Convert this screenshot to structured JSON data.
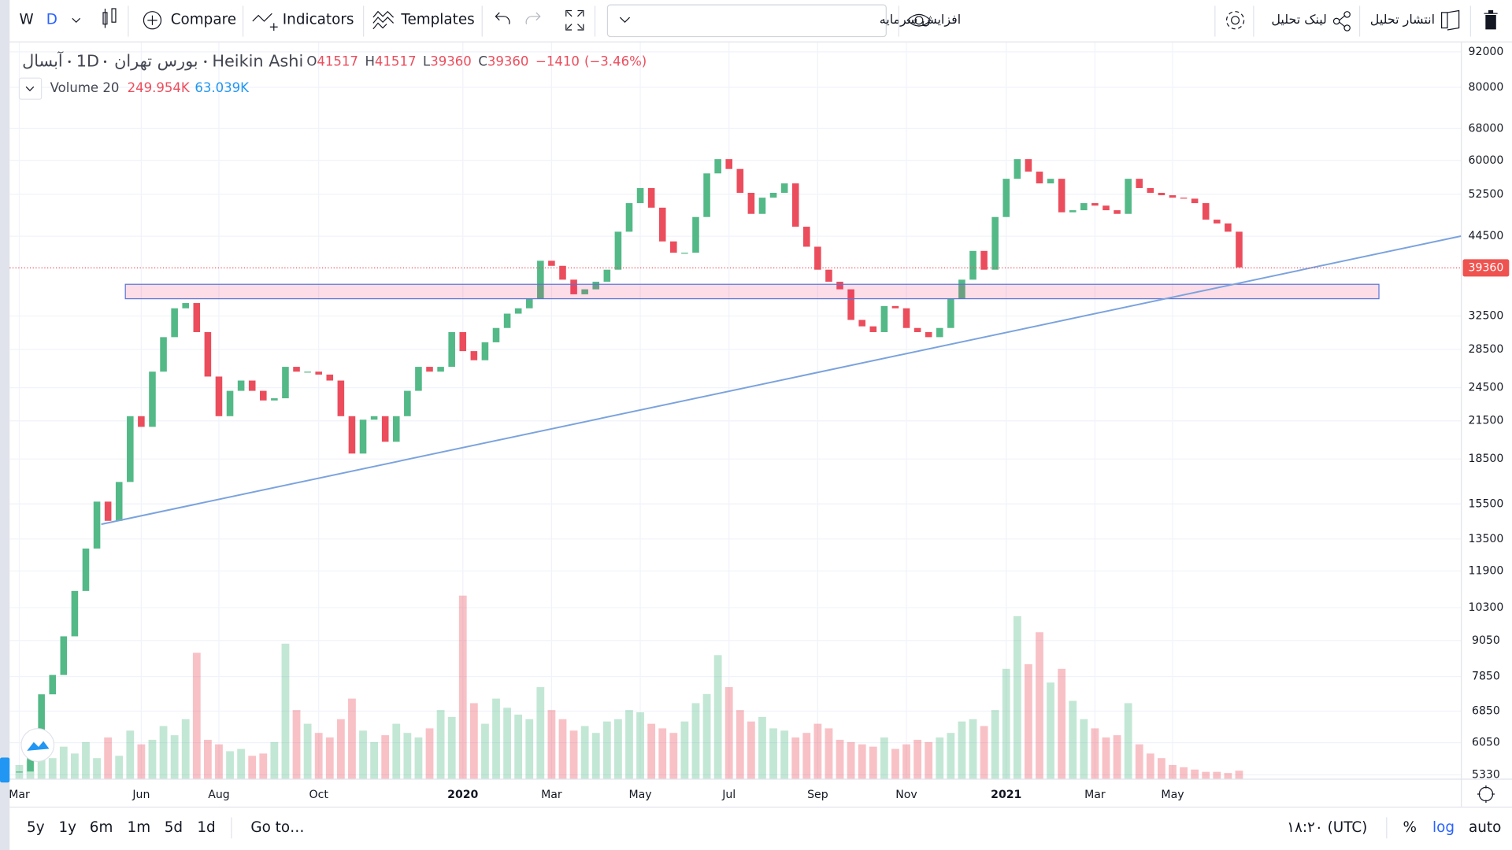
{
  "toolbar": {
    "symbol_short": "W",
    "interval": "D",
    "compare": "Compare",
    "indicators": "Indicators",
    "templates": "Templates",
    "layout_name": "افزایش سرمایه",
    "share": "لینک تحلیل",
    "publish": "انتشار تحلیل"
  },
  "footer": {
    "ranges": [
      "5y",
      "1y",
      "6m",
      "1m",
      "5d",
      "1d"
    ],
    "goto": "Go to…",
    "time": "۱۸:۲۰ (UTC)",
    "percent": "%",
    "log": "log",
    "auto": "auto"
  },
  "chart_data": {
    "type": "candlestick",
    "symbol": "آبسال",
    "interval": "1D",
    "exchange": "بورس تهران",
    "style": "Heikin Ashi",
    "ohlc": [
      {
        "label": "O",
        "value": 41517
      },
      {
        "label": "H",
        "value": 41517
      },
      {
        "label": "L",
        "value": 39360
      },
      {
        "label": "C",
        "value": 39360
      }
    ],
    "change": {
      "value": -1410,
      "label": "−1410"
    },
    "change_pct": {
      "value": -3.46,
      "label": "(−3.46%)"
    },
    "volume_label": "Volume 20",
    "volume_last": {
      "value": 249954,
      "label": "249.954K"
    },
    "volume_ma": {
      "value": 63039,
      "label": "63.039K"
    },
    "up_color": "#53b987",
    "down_color": "#eb4d5c",
    "log_scale": true,
    "grid": true,
    "categories": [
      "Mar",
      null,
      null,
      null,
      null,
      null,
      null,
      null,
      null,
      null,
      null,
      "Jun",
      null,
      null,
      null,
      null,
      null,
      null,
      "Aug",
      null,
      null,
      null,
      null,
      null,
      null,
      null,
      null,
      "Oct",
      null,
      null,
      null,
      null,
      null,
      null,
      null,
      null,
      null,
      null,
      null,
      null,
      "2020",
      null,
      null,
      null,
      null,
      null,
      null,
      null,
      "Mar",
      null,
      null,
      null,
      null,
      null,
      null,
      null,
      "May",
      null,
      null,
      null,
      null,
      null,
      null,
      null,
      "Jul",
      null,
      null,
      null,
      null,
      null,
      null,
      null,
      "Sep",
      null,
      null,
      null,
      null,
      null,
      null,
      null,
      "Nov",
      null,
      null,
      null,
      null,
      null,
      null,
      null,
      null,
      "2021",
      null,
      null,
      null,
      null,
      null,
      null,
      null,
      "Mar",
      null,
      null,
      null,
      null,
      null,
      null,
      "May",
      null,
      null,
      null,
      null,
      null,
      null
    ],
    "values": [
      5400,
      6000,
      7320,
      7900,
      9200,
      11000,
      13000,
      15640,
      14500,
      16900,
      21900,
      21000,
      26100,
      29900,
      33500,
      34200,
      30500,
      25600,
      21900,
      24200,
      25200,
      24200,
      23300,
      23500,
      26600,
      26100,
      26100,
      25800,
      25200,
      21900,
      18900,
      21600,
      21900,
      19800,
      21900,
      24200,
      26600,
      26100,
      26600,
      30500,
      28300,
      27300,
      29300,
      31000,
      32800,
      33500,
      34800,
      40400,
      39600,
      37500,
      35400,
      36100,
      37200,
      39000,
      45300,
      50700,
      53800,
      49800,
      43600,
      41700,
      41700,
      48000,
      57000,
      60300,
      58000,
      52800,
      48600,
      51800,
      52800,
      54800,
      46200,
      42700,
      39000,
      37200,
      36100,
      32000,
      31200,
      30500,
      33800,
      33500,
      31000,
      30500,
      29900,
      31000,
      34800,
      37500,
      42000,
      39000,
      48000,
      55800,
      60300,
      57400,
      54800,
      55800,
      48900,
      49300,
      50700,
      50200,
      49300,
      48600,
      55800,
      53800,
      52800,
      52300,
      51800,
      51600,
      50700,
      47500,
      46800,
      45300,
      39360
    ],
    "volume": [
      60,
      80,
      120,
      90,
      140,
      110,
      160,
      90,
      180,
      100,
      210,
      150,
      170,
      230,
      190,
      260,
      550,
      170,
      150,
      120,
      130,
      100,
      110,
      160,
      590,
      300,
      240,
      200,
      180,
      260,
      350,
      210,
      160,
      190,
      240,
      200,
      180,
      220,
      300,
      270,
      800,
      330,
      240,
      350,
      310,
      280,
      260,
      400,
      300,
      260,
      210,
      230,
      200,
      250,
      260,
      300,
      290,
      240,
      220,
      200,
      250,
      330,
      370,
      540,
      400,
      300,
      250,
      270,
      220,
      210,
      180,
      200,
      240,
      220,
      170,
      160,
      150,
      140,
      180,
      130,
      150,
      170,
      160,
      180,
      200,
      250,
      260,
      230,
      300,
      480,
      710,
      500,
      640,
      420,
      480,
      340,
      260,
      220,
      180,
      190,
      330,
      150,
      110,
      90,
      60,
      50,
      40,
      30,
      30,
      25,
      35
    ],
    "ylim": [
      5250,
      95500
    ],
    "yticks": [
      92000,
      80000,
      68000,
      60000,
      52500,
      44500,
      32500,
      28500,
      24500,
      21500,
      18500,
      15500,
      13500,
      11900,
      10300,
      9050,
      7850,
      6850,
      6050,
      5330
    ]
  }
}
